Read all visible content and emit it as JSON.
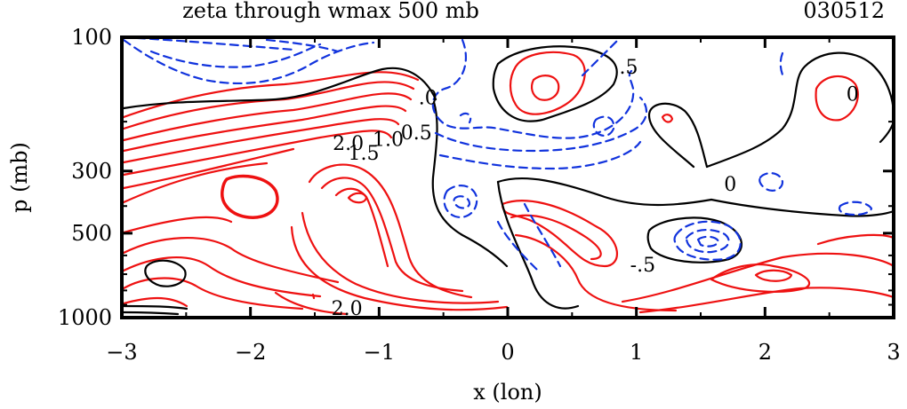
{
  "chart_data": {
    "type": "contour",
    "title": "zeta through wmax 500 mb",
    "date_label": "030512",
    "xlabel": "x (lon)",
    "ylabel": "p (mb)",
    "xlim": [
      -3,
      3
    ],
    "x_ticks": [
      "−3",
      "−2",
      "−1",
      "0",
      "1",
      "2",
      "3"
    ],
    "x_tick_values": [
      -3,
      -2,
      -1,
      0,
      1,
      2,
      3
    ],
    "y_scale": "log",
    "ylim": [
      1000,
      100
    ],
    "y_ticks": [
      "100",
      "300",
      "500",
      "1000"
    ],
    "y_tick_values": [
      100,
      300,
      500,
      1000
    ],
    "positive_color": "#ee1111",
    "zero_color": "#000000",
    "negative_color": "#1133dd",
    "contour_labels": [
      {
        "text": "2.0",
        "x": -1.24,
        "p": 240
      },
      {
        "text": "1.5",
        "x": -1.12,
        "p": 260
      },
      {
        "text": "1.0",
        "x": -0.93,
        "p": 232
      },
      {
        "text": "0.5",
        "x": -0.71,
        "p": 220
      },
      {
        "text": ".0",
        "x": -0.62,
        "p": 165
      },
      {
        "text": "0",
        "x": 1.73,
        "p": 335
      },
      {
        "text": "0",
        "x": 2.68,
        "p": 160
      },
      {
        "text": ".5",
        "x": 0.94,
        "p": 128
      },
      {
        "text": "-.5",
        "x": 1.05,
        "p": 650
      },
      {
        "text": "2.0",
        "x": -1.25,
        "p": 930
      }
    ]
  }
}
